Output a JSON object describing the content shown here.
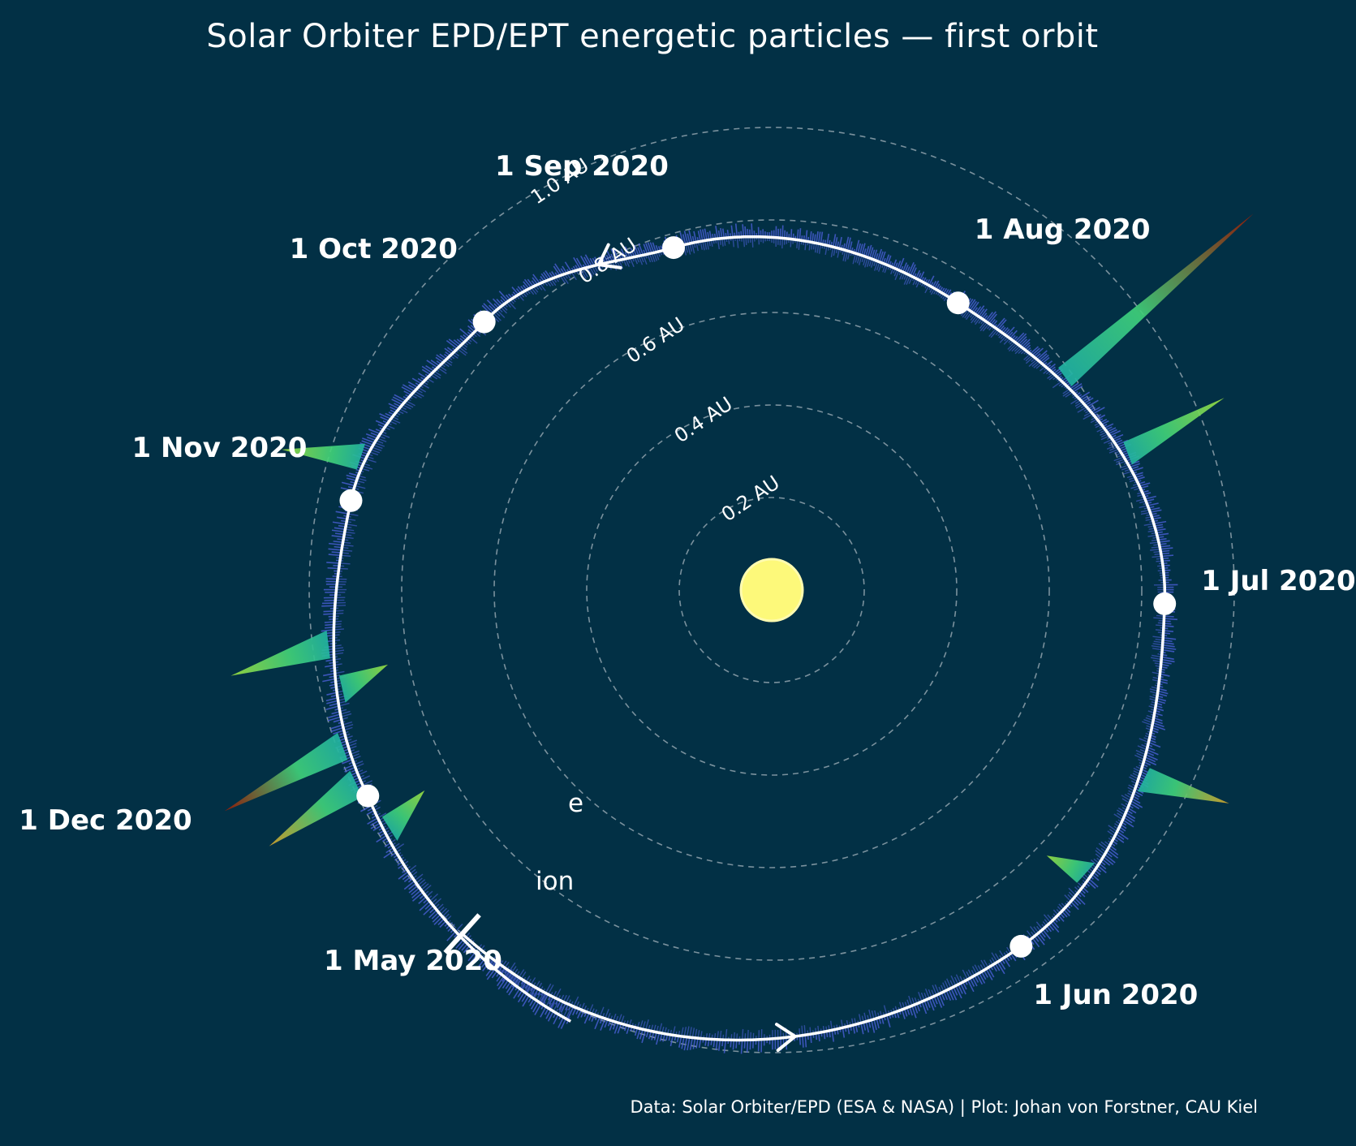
{
  "title": "Solar Orbiter EPD/EPT energetic particles — first orbit",
  "credit": "Data: Solar Orbiter/EPD (ESA & NASA) | Plot: Johan von Forstner, CAU Kiel",
  "colors": {
    "background": "#023045",
    "sun": "#fdf97a",
    "orbit": "#ffffff",
    "grid": "#8fa2ad",
    "baseline_flux": "#4a5fd6"
  },
  "chart_data": {
    "type": "polar-orbit",
    "radial_unit": "AU",
    "radial_ticks": [
      {
        "r": 0.2,
        "label": "0.2 AU"
      },
      {
        "r": 0.4,
        "label": "0.4 AU"
      },
      {
        "r": 0.6,
        "label": "0.6 AU"
      },
      {
        "r": 0.8,
        "label": "0.8 AU"
      },
      {
        "r": 1.0,
        "label": "1.0 AU"
      }
    ],
    "orbit_markers": [
      {
        "date": "1 May 2020",
        "r": 1.0,
        "angle_deg": 235
      },
      {
        "date": "1 Jun 2020",
        "r": 0.94,
        "angle_deg": 305
      },
      {
        "date": "1 Jul 2020",
        "r": 0.85,
        "angle_deg": 358
      },
      {
        "date": "1 Aug 2020",
        "r": 0.74,
        "angle_deg": 57
      },
      {
        "date": "1 Sep 2020",
        "r": 0.77,
        "angle_deg": 106
      },
      {
        "date": "1 Oct 2020",
        "r": 0.85,
        "angle_deg": 137
      },
      {
        "date": "1 Nov 2020",
        "r": 0.93,
        "angle_deg": 168
      },
      {
        "date": "1 Dec 2020",
        "r": 0.98,
        "angle_deg": 207
      }
    ],
    "side_labels": {
      "electrons": "e",
      "ions": "ion"
    },
    "events": [
      {
        "date_approx": "2020-07-18",
        "angle_deg": 36,
        "length_au": 0.55,
        "intensity": 0.9,
        "side": "e"
      },
      {
        "date_approx": "2020-07-10",
        "angle_deg": 21,
        "length_au": 0.25,
        "intensity": 0.5,
        "side": "e"
      },
      {
        "date_approx": "2020-06-20",
        "angle_deg": 333,
        "length_au": 0.2,
        "intensity": 0.8,
        "side": "e"
      },
      {
        "date_approx": "2020-11-08",
        "angle_deg": 162,
        "length_au": 0.18,
        "intensity": 0.5,
        "side": "e"
      },
      {
        "date_approx": "2020-11-23",
        "angle_deg": 187,
        "length_au": 0.23,
        "intensity": 0.55,
        "side": "e"
      },
      {
        "date_approx": "2020-11-25",
        "angle_deg": 193,
        "length_au": 0.12,
        "intensity": 0.45,
        "side": "ion"
      },
      {
        "date_approx": "2020-11-29",
        "angle_deg": 200,
        "length_au": 0.3,
        "intensity": 1.0,
        "side": "e"
      },
      {
        "date_approx": "2020-12-02",
        "angle_deg": 205,
        "length_au": 0.24,
        "intensity": 0.75,
        "side": "e"
      },
      {
        "date_approx": "2020-12-05",
        "angle_deg": 212,
        "length_au": 0.12,
        "intensity": 0.4,
        "side": "ion"
      },
      {
        "date_approx": "2020-06-10",
        "angle_deg": 318,
        "length_au": 0.1,
        "intensity": 0.35,
        "side": "ion"
      }
    ]
  }
}
